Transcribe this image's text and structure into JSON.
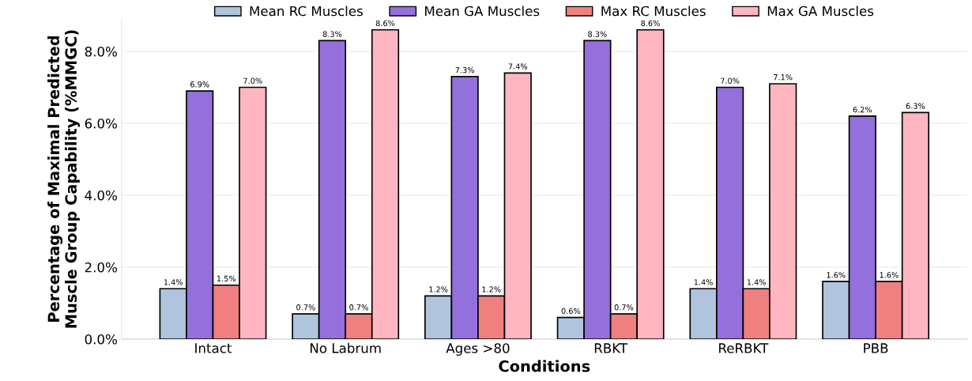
{
  "chart_data": {
    "type": "bar",
    "xlabel": "Conditions",
    "ylabel": "Percentage of Maximal Predicted\nMuscle Group Capability (%MMGC)",
    "categories": [
      "Intact",
      "No Labrum",
      "Ages >80",
      "RBKT",
      "ReRBKT",
      "PBB"
    ],
    "series": [
      {
        "name": "Mean RC Muscles",
        "color": "#b0c4de",
        "values": [
          1.4,
          0.7,
          1.2,
          0.6,
          1.4,
          1.6
        ],
        "value_labels": [
          "1.4%",
          "0.7%",
          "1.2%",
          "0.6%",
          "1.4%",
          "1.6%"
        ]
      },
      {
        "name": "Mean GA Muscles",
        "color": "#9370db",
        "values": [
          6.9,
          8.3,
          7.3,
          8.3,
          7.0,
          6.2
        ],
        "value_labels": [
          "6.9%",
          "8.3%",
          "7.3%",
          "8.3%",
          "7.0%",
          "6.2%"
        ]
      },
      {
        "name": "Max RC Muscles",
        "color": "#f08080",
        "values": [
          1.5,
          0.7,
          1.2,
          0.7,
          1.4,
          1.6
        ],
        "value_labels": [
          "1.5%",
          "0.7%",
          "1.2%",
          "0.7%",
          "1.4%",
          "1.6%"
        ]
      },
      {
        "name": "Max GA Muscles",
        "color": "#ffb6c1",
        "values": [
          7.0,
          8.6,
          7.4,
          8.6,
          7.1,
          6.3
        ],
        "value_labels": [
          "7.0%",
          "8.6%",
          "7.4%",
          "8.6%",
          "7.1%",
          "6.3%"
        ]
      }
    ],
    "ylim": [
      0,
      8.9
    ],
    "yticks": [
      {
        "value": 0,
        "label": "0.0%"
      },
      {
        "value": 2,
        "label": "2.0%"
      },
      {
        "value": 4,
        "label": "4.0%"
      },
      {
        "value": 6,
        "label": "6.0%"
      },
      {
        "value": 8,
        "label": "8.0%"
      }
    ],
    "grid": "y",
    "legend": "top"
  }
}
